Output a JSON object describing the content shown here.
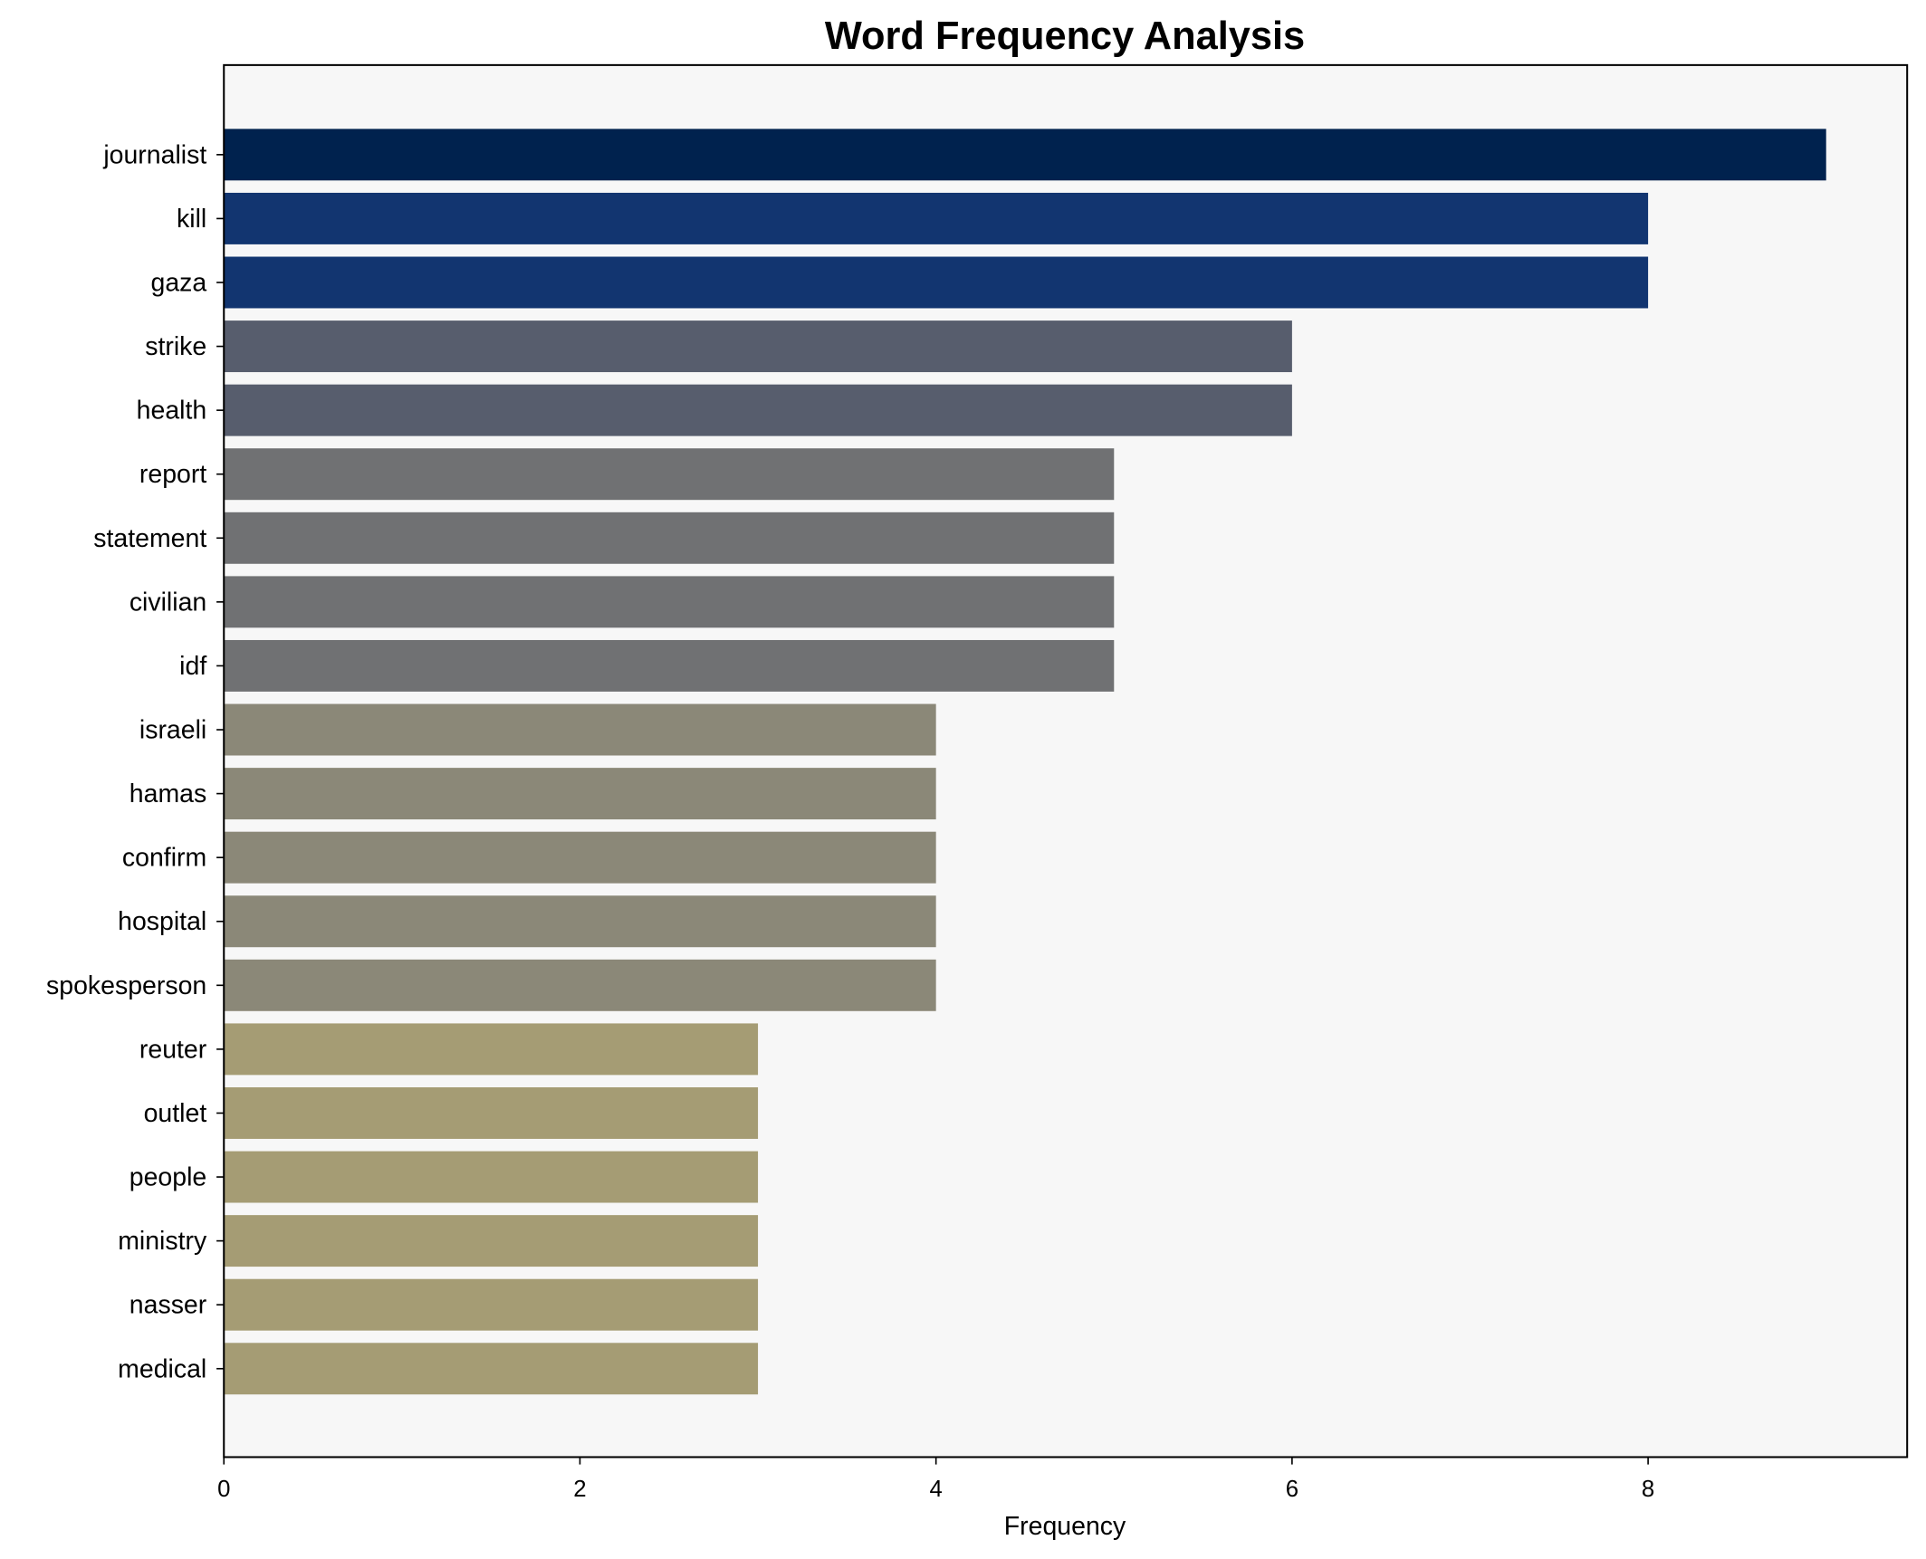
{
  "chart_data": {
    "type": "bar",
    "orientation": "horizontal",
    "title": "Word Frequency Analysis",
    "xlabel": "Frequency",
    "ylabel": "",
    "xlim": [
      0,
      9.45
    ],
    "xticks": [
      0,
      2,
      4,
      6,
      8
    ],
    "grid": false,
    "plot_background": "#f7f7f7",
    "categories": [
      "journalist",
      "kill",
      "gaza",
      "strike",
      "health",
      "report",
      "statement",
      "civilian",
      "idf",
      "israeli",
      "hamas",
      "confirm",
      "hospital",
      "spokesperson",
      "reuter",
      "outlet",
      "people",
      "ministry",
      "nasser",
      "medical"
    ],
    "values": [
      9,
      8,
      8,
      6,
      6,
      5,
      5,
      5,
      5,
      4,
      4,
      4,
      4,
      4,
      3,
      3,
      3,
      3,
      3,
      3
    ],
    "colors": [
      "#00224e",
      "#123570",
      "#123570",
      "#575d6d",
      "#575d6d",
      "#707173",
      "#707173",
      "#707173",
      "#707173",
      "#8b8878",
      "#8b8878",
      "#8b8878",
      "#8b8878",
      "#8b8878",
      "#a59c74",
      "#a59c74",
      "#a59c74",
      "#a59c74",
      "#a59c74",
      "#a59c74"
    ]
  }
}
